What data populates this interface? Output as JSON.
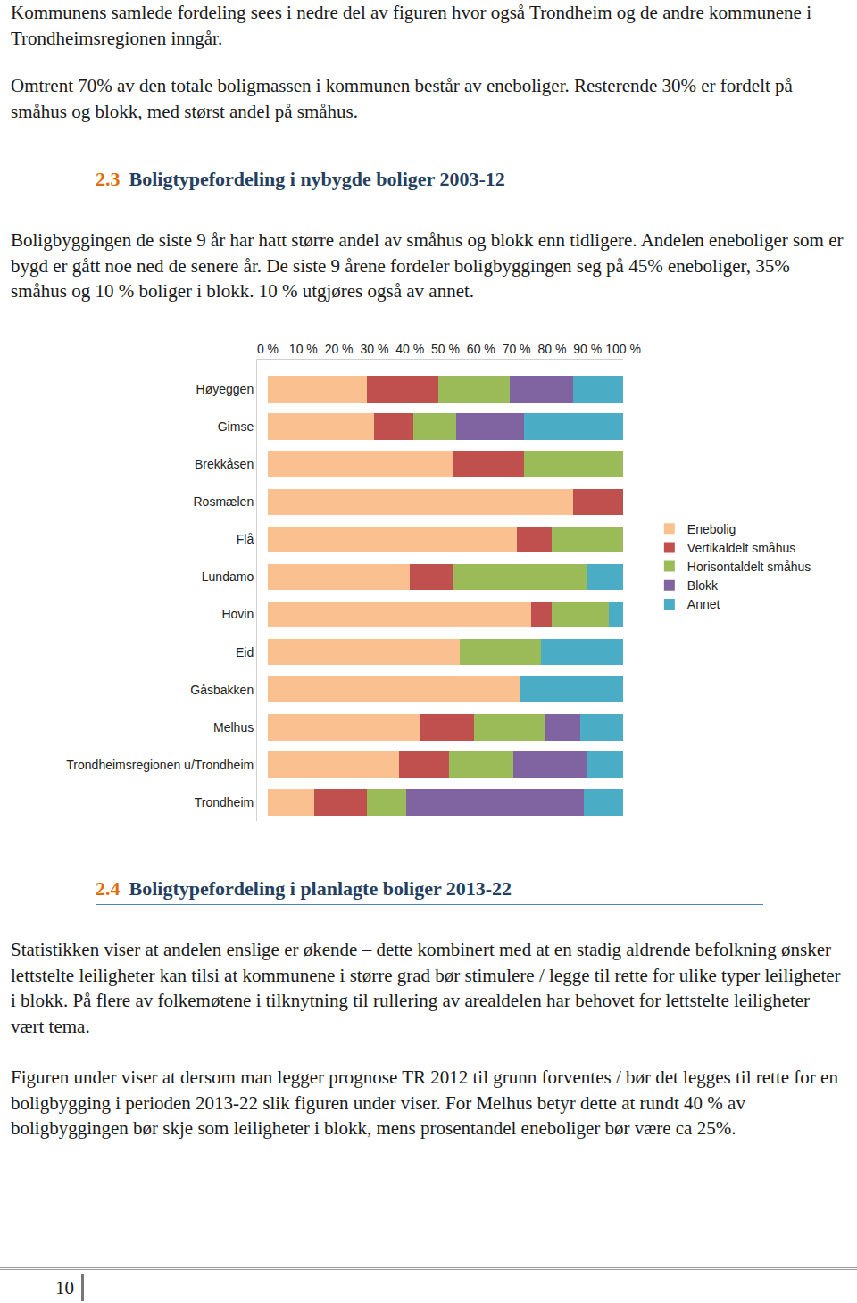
{
  "document": {
    "intro": [
      "Kommunens samlede fordeling sees i nedre del av figuren hvor også Trondheim og de andre kommunene i Trondheimsregionen inngår.",
      "Omtrent 70% av den totale boligmassen i kommunen består av eneboliger. Resterende 30% er fordelt på småhus og blokk, med størst andel på småhus."
    ],
    "sections": [
      {
        "number": "2.3",
        "title": "Boligtypefordeling i nybygde boliger 2003-12",
        "paragraphs": [
          "Boligbyggingen de siste 9 år har hatt større andel av småhus og blokk enn tidligere. Andelen eneboliger som er bygd er gått noe ned de senere år. De siste 9 årene fordeler boligbyggingen seg på 45% eneboliger, 35% småhus og 10 % boliger i blokk. 10 % utgjøres også av annet."
        ]
      },
      {
        "number": "2.4",
        "title": "Boligtypefordeling i planlagte boliger 2013-22",
        "paragraphs": [
          "Statistikken viser at andelen enslige er økende – dette kombinert med at en stadig aldrende befolkning ønsker lettstelte leiligheter kan tilsi at kommunene i større grad bør stimulere / legge til rette for ulike typer leiligheter i blokk. På flere av folkemøtene i tilknytning til rullering av arealdelen har behovet for lettstelte leiligheter vært tema.",
          "Figuren under viser at dersom man legger prognose TR 2012 til grunn forventes / bør det legges til rette for en boligbygging i perioden 2013-22 slik figuren under viser. For Melhus betyr dette at rundt 40 % av boligbyggingen bør skje som leiligheter i blokk, mens prosentandel eneboliger bør være ca 25%."
        ]
      }
    ],
    "page_number": "10"
  },
  "chart_data": {
    "type": "bar",
    "orientation": "horizontal",
    "stacked": true,
    "grid": false,
    "legend": "right",
    "categories": [
      "Høyeggen",
      "Gimse",
      "Brekkåsen",
      "Rosmælen",
      "Flå",
      "Lundamo",
      "Hovin",
      "Eid",
      "Gåsbakken",
      "Melhus",
      "Trondheimsregionen u/Trondheim",
      "Trondheim"
    ],
    "xlim": [
      0,
      100
    ],
    "xticks": [
      {
        "value": 0,
        "label": "0 %"
      },
      {
        "value": 10,
        "label": "10 %"
      },
      {
        "value": 20,
        "label": "20 %"
      },
      {
        "value": 30,
        "label": "30 %"
      },
      {
        "value": 40,
        "label": "40 %"
      },
      {
        "value": 50,
        "label": "50 %"
      },
      {
        "value": 60,
        "label": "60 %"
      },
      {
        "value": 70,
        "label": "70 %"
      },
      {
        "value": 80,
        "label": "80 %"
      },
      {
        "value": 90,
        "label": "90 %"
      },
      {
        "value": 100,
        "label": "100 %"
      }
    ],
    "series": [
      {
        "name": "Enebolig",
        "color": "#fac090",
        "values": [
          28,
          30,
          52,
          86,
          70,
          40,
          74,
          54,
          71,
          43,
          37,
          13
        ]
      },
      {
        "name": "Vertikaldelt småhus",
        "color": "#c0504d",
        "values": [
          20,
          11,
          20,
          14,
          10,
          12,
          6,
          0,
          0,
          15,
          14,
          15
        ]
      },
      {
        "name": "Horisontaldelt småhus",
        "color": "#9bbb59",
        "values": [
          20,
          12,
          28,
          0,
          20,
          38,
          16,
          23,
          0,
          20,
          18,
          11
        ]
      },
      {
        "name": "Blokk",
        "color": "#8064a2",
        "values": [
          18,
          19,
          0,
          0,
          0,
          0,
          0,
          0,
          0,
          10,
          21,
          50
        ]
      },
      {
        "name": "Annet",
        "color": "#4bacc6",
        "values": [
          14,
          28,
          0,
          0,
          0,
          10,
          4,
          23,
          29,
          12,
          10,
          11
        ]
      }
    ]
  }
}
